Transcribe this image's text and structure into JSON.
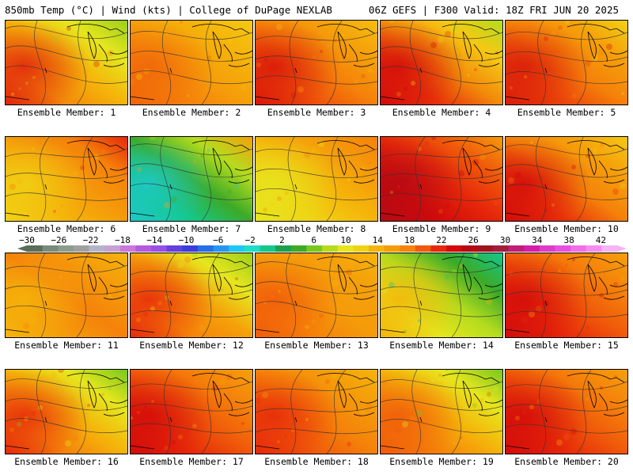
{
  "header": {
    "title": "850mb Temp (°C) | Wind (kts) | College of DuPage NEXLAB",
    "valid": "06Z GEFS | F300 Valid: 18Z FRI JUN 20 2025"
  },
  "colorbar": {
    "tick_labels": [
      "−30",
      "−26",
      "−22",
      "−18",
      "−14",
      "−10",
      "−6",
      "−2",
      "2",
      "6",
      "10",
      "14",
      "18",
      "22",
      "26",
      "30",
      "34",
      "38",
      "42"
    ],
    "colors": [
      "#5a6e5a",
      "#7a8a7a",
      "#8c9c8c",
      "#a0a0a0",
      "#b4b4c8",
      "#c8a0d2",
      "#c878dc",
      "#b45adc",
      "#9650e6",
      "#6440dc",
      "#3c3cdc",
      "#286ee6",
      "#2896f0",
      "#1ec8f0",
      "#1edcc8",
      "#14c88c",
      "#1ea050",
      "#3caa28",
      "#78c81e",
      "#b4dc1e",
      "#e6e61e",
      "#f0d214",
      "#f5b40a",
      "#f59b0a",
      "#f5820a",
      "#f05a0a",
      "#e6280a",
      "#d20a0a",
      "#b40a14",
      "#a0141e",
      "#a01e3c",
      "#be1e78",
      "#d21eaa",
      "#dc3cc8",
      "#e650e1",
      "#f06ee6",
      "#f58cf0",
      "#f5b4f5"
    ]
  },
  "panels": [
    {
      "label": "Ensemble Member: 1",
      "scheme": [
        "#e0200c",
        "#f28a0a",
        "#f5b40a",
        "#e6e61e",
        "#9ccf1a"
      ]
    },
    {
      "label": "Ensemble Member: 2",
      "scheme": [
        "#f0640a",
        "#f5820a",
        "#f5a00a",
        "#f5b40a",
        "#f5c814"
      ]
    },
    {
      "label": "Ensemble Member: 3",
      "scheme": [
        "#d8140a",
        "#ee500a",
        "#f5820a",
        "#f5a00a",
        "#f5be10"
      ]
    },
    {
      "label": "Ensemble Member: 4",
      "scheme": [
        "#d20a0a",
        "#e8320a",
        "#f28c0a",
        "#f5c814",
        "#b4dc1e"
      ]
    },
    {
      "label": "Ensemble Member: 5",
      "scheme": [
        "#d81a0a",
        "#ec460a",
        "#f5820a",
        "#f5a00a",
        "#f0d214"
      ]
    },
    {
      "label": "Ensemble Member: 6",
      "scheme": [
        "#f0d214",
        "#f5b40a",
        "#f59b0a",
        "#f5820a",
        "#e6280a"
      ]
    },
    {
      "label": "Ensemble Member: 7",
      "scheme": [
        "#1ec8c8",
        "#14c88c",
        "#3caa28",
        "#b4dc1e",
        "#f5a00a"
      ]
    },
    {
      "label": "Ensemble Member: 8",
      "scheme": [
        "#e6e61e",
        "#f0d214",
        "#f5b40a",
        "#f59b0a",
        "#f5820a"
      ]
    },
    {
      "label": "Ensemble Member: 9",
      "scheme": [
        "#b40a14",
        "#d20a0a",
        "#e6280a",
        "#f05a0a",
        "#f59b0a"
      ]
    },
    {
      "label": "Ensemble Member: 10",
      "scheme": [
        "#d20a0a",
        "#e8320a",
        "#f5820a",
        "#f5a00a",
        "#f5c814"
      ]
    },
    {
      "label": "Ensemble Member: 11",
      "scheme": [
        "#f5b40a",
        "#f59b0a",
        "#f5820a",
        "#f59b0a",
        "#f5b40a"
      ]
    },
    {
      "label": "Ensemble Member: 12",
      "scheme": [
        "#e6280a",
        "#f5820a",
        "#f5a00a",
        "#e6e61e",
        "#9ccf1a"
      ]
    },
    {
      "label": "Ensemble Member: 13",
      "scheme": [
        "#f05a0a",
        "#f5820a",
        "#f59b0a",
        "#f5a00a",
        "#f5b40a"
      ]
    },
    {
      "label": "Ensemble Member: 14",
      "scheme": [
        "#f5b40a",
        "#e6e61e",
        "#b4dc1e",
        "#3caa28",
        "#14c88c"
      ]
    },
    {
      "label": "Ensemble Member: 15",
      "scheme": [
        "#d20a0a",
        "#e6280a",
        "#f05a0a",
        "#f5820a",
        "#f5a00a"
      ]
    },
    {
      "label": "Ensemble Member: 16",
      "scheme": [
        "#e6280a",
        "#f5820a",
        "#f5b40a",
        "#e6e61e",
        "#78c81e"
      ]
    },
    {
      "label": "Ensemble Member: 17",
      "scheme": [
        "#d20a0a",
        "#e6280a",
        "#f05a0a",
        "#f5820a",
        "#f5a00a"
      ]
    },
    {
      "label": "Ensemble Member: 18",
      "scheme": [
        "#e6280a",
        "#f05a0a",
        "#f5820a",
        "#f59b0a",
        "#f5b40a"
      ]
    },
    {
      "label": "Ensemble Member: 19",
      "scheme": [
        "#f05a0a",
        "#f5820a",
        "#f5b40a",
        "#e6e61e",
        "#78c81e"
      ]
    },
    {
      "label": "Ensemble Member: 20",
      "scheme": [
        "#d20a0a",
        "#e6280a",
        "#f05a0a",
        "#f5820a",
        "#f5a00a"
      ]
    }
  ]
}
